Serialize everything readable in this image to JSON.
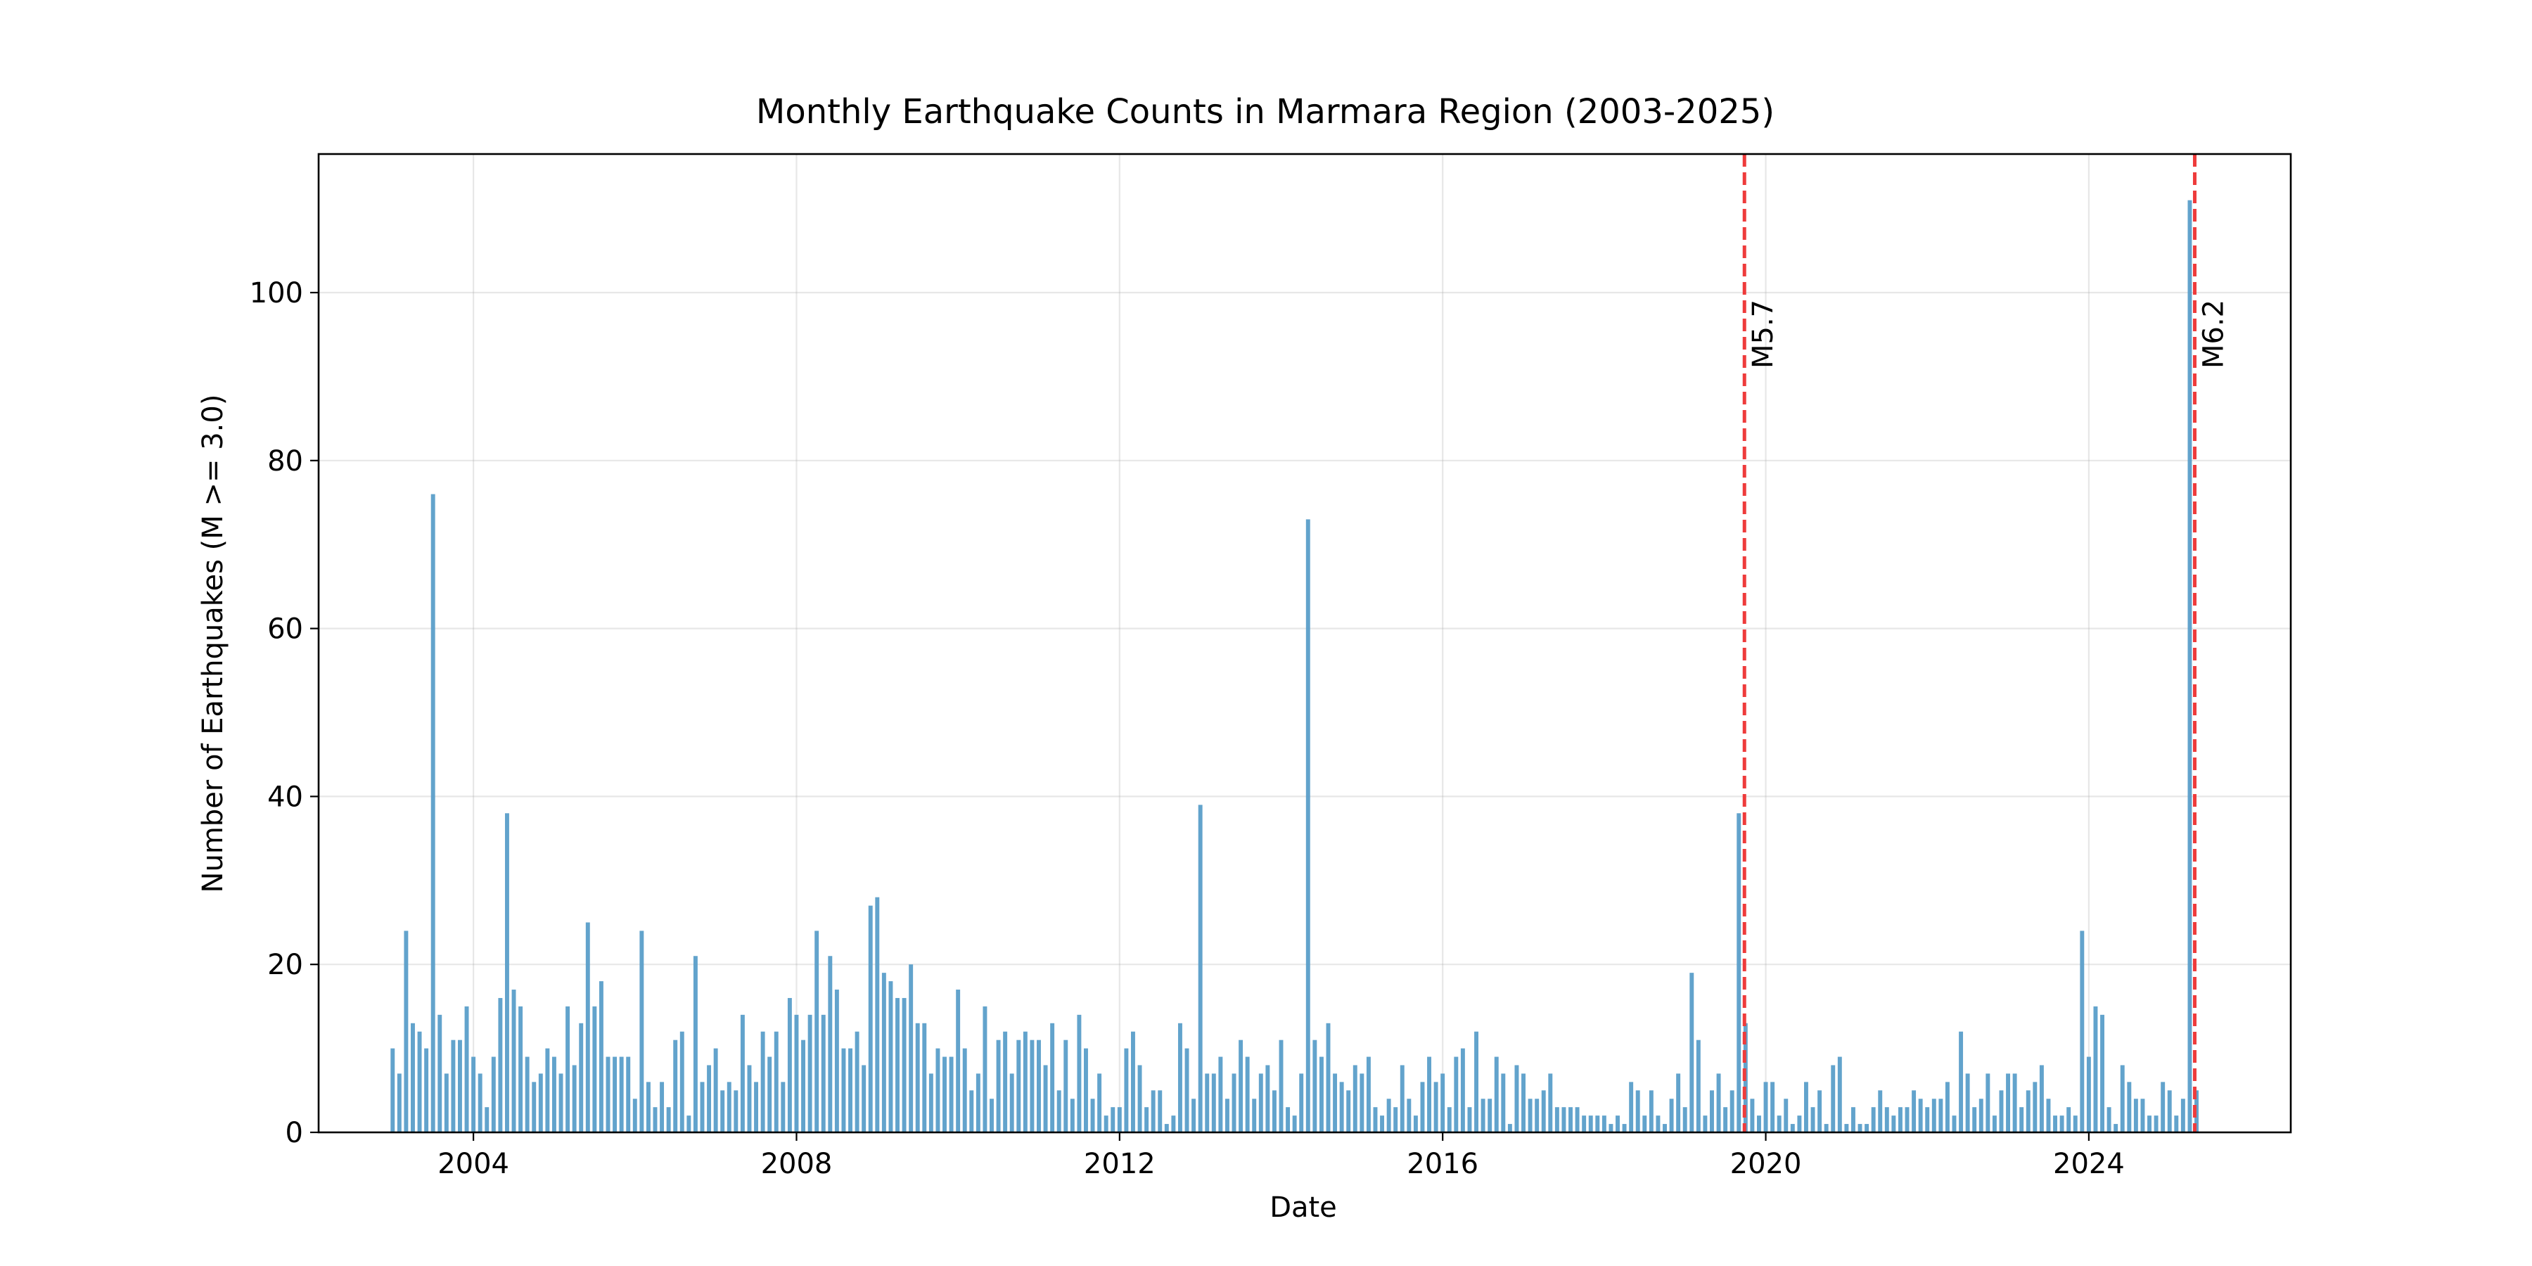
{
  "chart_data": {
    "type": "bar",
    "title": "Monthly Earthquake Counts in Marmara Region (2003-2025)",
    "xlabel": "Date",
    "ylabel": "Number of Earthquakes (M >= 3.0)",
    "x_tick_labels": [
      "2004",
      "2008",
      "2012",
      "2016",
      "2020",
      "2024"
    ],
    "y_tick_labels": [
      "0",
      "20",
      "40",
      "60",
      "80",
      "100"
    ],
    "y_ticks": [
      0,
      20,
      40,
      60,
      80,
      100
    ],
    "xlim": [
      "2002-02",
      "2026-07"
    ],
    "ylim": [
      0,
      116.5
    ],
    "grid": true,
    "bar_color": "#5a9ec9",
    "series": [
      {
        "x_start": "2003-01",
        "x_end": "2025-05",
        "values": [
          10,
          7,
          24,
          13,
          12,
          10,
          76,
          14,
          7,
          11,
          11,
          15,
          9,
          7,
          3,
          9,
          16,
          38,
          17,
          15,
          9,
          6,
          7,
          10,
          9,
          7,
          15,
          8,
          13,
          25,
          15,
          18,
          9,
          9,
          9,
          9,
          4,
          24,
          6,
          3,
          6,
          3,
          11,
          12,
          2,
          21,
          6,
          8,
          10,
          5,
          6,
          5,
          14,
          8,
          6,
          12,
          9,
          12,
          6,
          16,
          14,
          11,
          14,
          24,
          14,
          21,
          17,
          10,
          10,
          12,
          8,
          27,
          28,
          19,
          18,
          16,
          16,
          20,
          13,
          13,
          7,
          10,
          9,
          9,
          17,
          10,
          5,
          7,
          15,
          4,
          11,
          12,
          7,
          11,
          12,
          11,
          11,
          8,
          13,
          5,
          11,
          4,
          14,
          10,
          4,
          7,
          2,
          3,
          3,
          10,
          12,
          8,
          3,
          5,
          5,
          1,
          2,
          13,
          10,
          4,
          39,
          7,
          7,
          9,
          4,
          7,
          11,
          9,
          4,
          7,
          8,
          5,
          11,
          3,
          2,
          7,
          73,
          11,
          9,
          13,
          7,
          6,
          5,
          8,
          7,
          9,
          3,
          2,
          4,
          3,
          8,
          4,
          2,
          6,
          9,
          6,
          7,
          3,
          9,
          10,
          3,
          12,
          4,
          4,
          9,
          7,
          1,
          8,
          7,
          4,
          4,
          5,
          7,
          3,
          3,
          3,
          3,
          2,
          2,
          2,
          2,
          1,
          2,
          1,
          6,
          5,
          2,
          5,
          2,
          1,
          4,
          7,
          3,
          19,
          11,
          2,
          5,
          7,
          3,
          5,
          38,
          13,
          4,
          2,
          6,
          6,
          2,
          4,
          1,
          2,
          6,
          3,
          5,
          1,
          8,
          9,
          1,
          3,
          1,
          1,
          3,
          5,
          3,
          2,
          3,
          3,
          5,
          4,
          3,
          4,
          4,
          6,
          2,
          12,
          7,
          3,
          4,
          7,
          2,
          5,
          7,
          7,
          3,
          5,
          6,
          8,
          4,
          2,
          2,
          3,
          2,
          24,
          9,
          15,
          14,
          3,
          1,
          8,
          6,
          4,
          4,
          2,
          2,
          6,
          5,
          2,
          4,
          111,
          5
        ]
      }
    ],
    "annotations": [
      {
        "label": "M5.7",
        "x": "2019-09-26",
        "color": "#ee3b3b",
        "style": "dashed"
      },
      {
        "label": "M6.2",
        "x": "2025-04-23",
        "color": "#ee3b3b",
        "style": "dashed"
      }
    ]
  }
}
